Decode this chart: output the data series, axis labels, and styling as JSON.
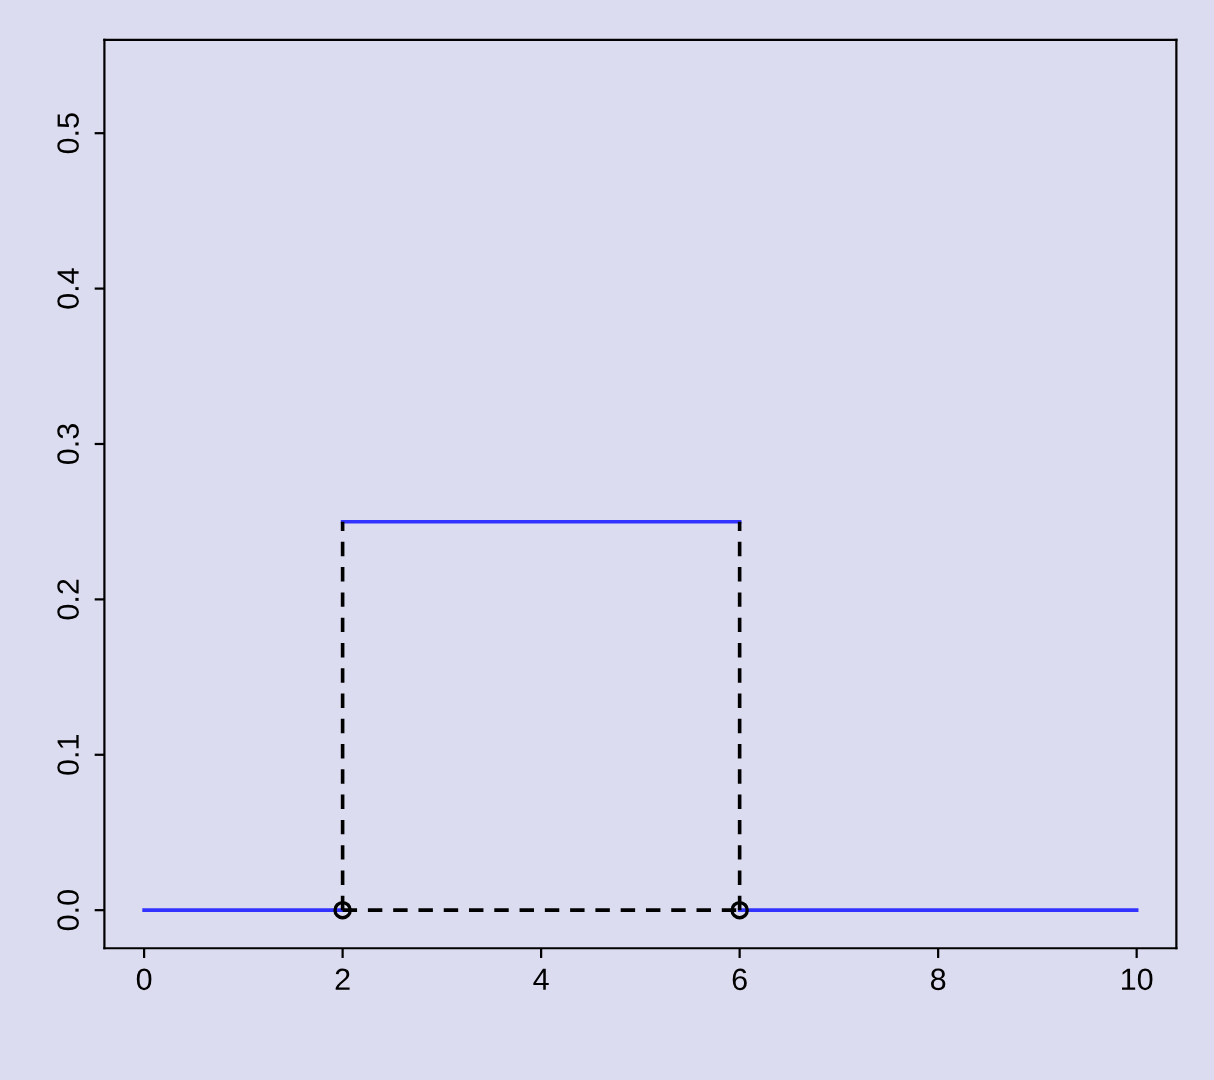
{
  "chart_data": {
    "type": "line",
    "xlim": [
      -0.4,
      10.4
    ],
    "ylim": [
      -0.0245,
      0.56
    ],
    "xticks": [
      0,
      2,
      4,
      6,
      8,
      10
    ],
    "yticks": [
      {
        "value": 0,
        "label": "0.0"
      },
      0.1,
      0.2,
      0.3,
      0.4,
      0.5
    ],
    "grid": false,
    "series": [
      {
        "color": "#3333ff",
        "line_style": "solid",
        "marker": "none",
        "x": [
          0,
          2
        ],
        "values": [
          0,
          0
        ]
      },
      {
        "color": "#3333ff",
        "line_style": "solid",
        "marker": "none",
        "x": [
          2,
          6
        ],
        "values": [
          0.25,
          0.25
        ]
      },
      {
        "color": "#3333ff",
        "line_style": "solid",
        "marker": "none",
        "x": [
          6,
          10
        ],
        "values": [
          0,
          0
        ]
      },
      {
        "color": "#000000",
        "line_style": "dashed",
        "marker": "none",
        "x": [
          2,
          2
        ],
        "values": [
          0,
          0.25
        ]
      },
      {
        "color": "#000000",
        "line_style": "dashed",
        "marker": "none",
        "x": [
          6,
          6
        ],
        "values": [
          0,
          0.25
        ]
      },
      {
        "color": "#000000",
        "line_style": "dashed",
        "marker": "none",
        "x": [
          2,
          6
        ],
        "values": [
          0,
          0
        ]
      },
      {
        "type": "scatter",
        "color": "#000000",
        "marker": "circle",
        "x": [
          2,
          6
        ],
        "values": [
          0,
          0
        ]
      }
    ]
  }
}
